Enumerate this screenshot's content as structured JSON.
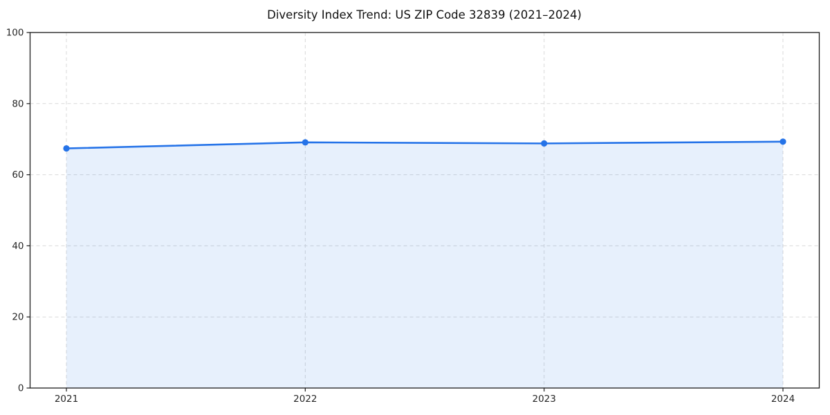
{
  "chart_data": {
    "type": "line",
    "title": "Diversity Index Trend: US ZIP Code 32839 (2021–2024)",
    "x": [
      2021,
      2022,
      2023,
      2024
    ],
    "x_tick_labels": [
      "2021",
      "2022",
      "2023",
      "2024"
    ],
    "series": [
      {
        "name": "Diversity Index",
        "values": [
          67.4,
          69.1,
          68.8,
          69.3
        ]
      }
    ],
    "xlabel": "",
    "ylabel": "",
    "ylim": [
      0,
      100
    ],
    "yticks": [
      0,
      20,
      40,
      60,
      80,
      100
    ],
    "y_tick_labels": [
      "0",
      "20",
      "40",
      "60",
      "80",
      "100"
    ],
    "grid": true,
    "grid_style": "dashed",
    "area_fill": true,
    "legend_position": "none",
    "colors": {
      "line": "#2573e8",
      "marker": "#2573e8",
      "area_fill": "rgba(37,115,232,0.11)",
      "grid": "#d9d9d9",
      "spine": "#1a1a1a",
      "tick_label": "#262626",
      "title": "#111111",
      "background": "#ffffff"
    }
  }
}
